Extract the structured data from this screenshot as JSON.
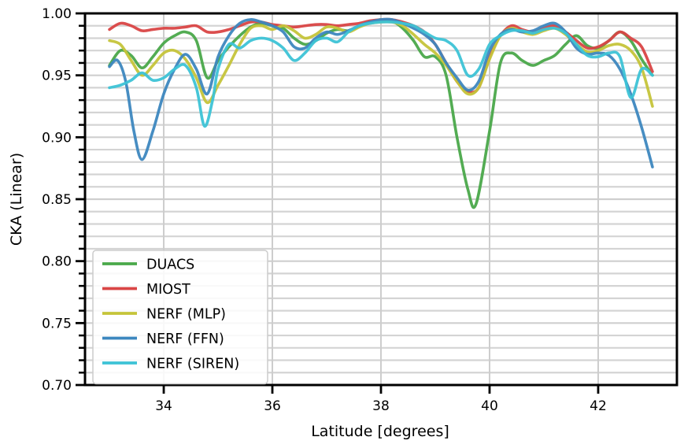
{
  "chart_data": {
    "type": "line",
    "title": "",
    "xlabel": "Latitude [degrees]",
    "ylabel": "CKA (Linear)",
    "xlim": [
      32.55,
      43.45
    ],
    "ylim": [
      0.7,
      1.0
    ],
    "x_ticks": [
      34,
      36,
      38,
      40,
      42
    ],
    "x_tick_labels": [
      "34",
      "36",
      "38",
      "40",
      "42"
    ],
    "y_ticks": [
      0.7,
      0.75,
      0.8,
      0.85,
      0.9,
      0.95,
      1.0
    ],
    "y_tick_labels": [
      "0.70",
      "0.75",
      "0.80",
      "0.85",
      "0.90",
      "0.95",
      "1.00"
    ],
    "grid": true,
    "legend_position": "lower-left",
    "series": [
      {
        "name": "DUACS",
        "color": "#4aa84a",
        "points": [
          [
            33.0,
            0.958
          ],
          [
            33.2,
            0.97
          ],
          [
            33.4,
            0.966
          ],
          [
            33.6,
            0.956
          ],
          [
            33.8,
            0.965
          ],
          [
            34.0,
            0.976
          ],
          [
            34.2,
            0.982
          ],
          [
            34.4,
            0.985
          ],
          [
            34.6,
            0.978
          ],
          [
            34.8,
            0.948
          ],
          [
            35.0,
            0.962
          ],
          [
            35.2,
            0.973
          ],
          [
            35.4,
            0.982
          ],
          [
            35.6,
            0.989
          ],
          [
            35.8,
            0.992
          ],
          [
            36.0,
            0.99
          ],
          [
            36.2,
            0.988
          ],
          [
            36.4,
            0.98
          ],
          [
            36.6,
            0.975
          ],
          [
            36.8,
            0.978
          ],
          [
            37.0,
            0.984
          ],
          [
            37.2,
            0.987
          ],
          [
            37.4,
            0.986
          ],
          [
            37.6,
            0.99
          ],
          [
            37.8,
            0.993
          ],
          [
            38.0,
            0.995
          ],
          [
            38.2,
            0.994
          ],
          [
            38.4,
            0.988
          ],
          [
            38.6,
            0.978
          ],
          [
            38.8,
            0.965
          ],
          [
            39.0,
            0.965
          ],
          [
            39.2,
            0.95
          ],
          [
            39.4,
            0.9
          ],
          [
            39.6,
            0.858
          ],
          [
            39.75,
            0.846
          ],
          [
            40.0,
            0.905
          ],
          [
            40.2,
            0.96
          ],
          [
            40.4,
            0.968
          ],
          [
            40.6,
            0.962
          ],
          [
            40.8,
            0.958
          ],
          [
            41.0,
            0.962
          ],
          [
            41.2,
            0.966
          ],
          [
            41.4,
            0.975
          ],
          [
            41.6,
            0.982
          ],
          [
            41.8,
            0.974
          ],
          [
            42.0,
            0.972
          ],
          [
            42.2,
            0.978
          ],
          [
            42.4,
            0.985
          ],
          [
            42.6,
            0.978
          ],
          [
            42.8,
            0.963
          ],
          [
            43.0,
            0.95
          ]
        ]
      },
      {
        "name": "MIOST",
        "color": "#d94545",
        "points": [
          [
            33.0,
            0.987
          ],
          [
            33.2,
            0.992
          ],
          [
            33.4,
            0.99
          ],
          [
            33.6,
            0.986
          ],
          [
            33.8,
            0.987
          ],
          [
            34.0,
            0.988
          ],
          [
            34.2,
            0.988
          ],
          [
            34.4,
            0.989
          ],
          [
            34.6,
            0.99
          ],
          [
            34.8,
            0.985
          ],
          [
            35.0,
            0.985
          ],
          [
            35.2,
            0.987
          ],
          [
            35.4,
            0.99
          ],
          [
            35.6,
            0.993
          ],
          [
            35.8,
            0.993
          ],
          [
            36.0,
            0.991
          ],
          [
            36.2,
            0.99
          ],
          [
            36.4,
            0.989
          ],
          [
            36.6,
            0.99
          ],
          [
            36.8,
            0.991
          ],
          [
            37.0,
            0.991
          ],
          [
            37.2,
            0.99
          ],
          [
            37.4,
            0.991
          ],
          [
            37.6,
            0.992
          ],
          [
            37.8,
            0.994
          ],
          [
            38.0,
            0.995
          ],
          [
            38.2,
            0.995
          ],
          [
            38.4,
            0.993
          ],
          [
            38.6,
            0.99
          ],
          [
            38.8,
            0.985
          ],
          [
            39.0,
            0.975
          ],
          [
            39.2,
            0.96
          ],
          [
            39.4,
            0.945
          ],
          [
            39.6,
            0.937
          ],
          [
            39.8,
            0.94
          ],
          [
            40.0,
            0.965
          ],
          [
            40.2,
            0.982
          ],
          [
            40.4,
            0.99
          ],
          [
            40.6,
            0.987
          ],
          [
            40.8,
            0.985
          ],
          [
            41.0,
            0.988
          ],
          [
            41.2,
            0.99
          ],
          [
            41.4,
            0.985
          ],
          [
            41.6,
            0.978
          ],
          [
            41.8,
            0.972
          ],
          [
            42.0,
            0.973
          ],
          [
            42.2,
            0.978
          ],
          [
            42.4,
            0.985
          ],
          [
            42.6,
            0.98
          ],
          [
            42.8,
            0.973
          ],
          [
            43.0,
            0.953
          ]
        ]
      },
      {
        "name": "NERF (MLP)",
        "color": "#c5c43a",
        "points": [
          [
            33.0,
            0.978
          ],
          [
            33.2,
            0.975
          ],
          [
            33.4,
            0.962
          ],
          [
            33.6,
            0.95
          ],
          [
            33.8,
            0.958
          ],
          [
            34.0,
            0.968
          ],
          [
            34.2,
            0.97
          ],
          [
            34.4,
            0.963
          ],
          [
            34.6,
            0.948
          ],
          [
            34.8,
            0.928
          ],
          [
            35.0,
            0.942
          ],
          [
            35.2,
            0.958
          ],
          [
            35.4,
            0.975
          ],
          [
            35.6,
            0.988
          ],
          [
            35.8,
            0.99
          ],
          [
            36.0,
            0.987
          ],
          [
            36.2,
            0.99
          ],
          [
            36.4,
            0.986
          ],
          [
            36.6,
            0.98
          ],
          [
            36.8,
            0.983
          ],
          [
            37.0,
            0.989
          ],
          [
            37.2,
            0.988
          ],
          [
            37.4,
            0.985
          ],
          [
            37.6,
            0.989
          ],
          [
            37.8,
            0.992
          ],
          [
            38.0,
            0.993
          ],
          [
            38.2,
            0.993
          ],
          [
            38.4,
            0.99
          ],
          [
            38.6,
            0.983
          ],
          [
            38.8,
            0.975
          ],
          [
            39.0,
            0.968
          ],
          [
            39.2,
            0.958
          ],
          [
            39.4,
            0.945
          ],
          [
            39.6,
            0.935
          ],
          [
            39.8,
            0.94
          ],
          [
            40.0,
            0.963
          ],
          [
            40.2,
            0.982
          ],
          [
            40.4,
            0.988
          ],
          [
            40.6,
            0.985
          ],
          [
            40.8,
            0.983
          ],
          [
            41.0,
            0.986
          ],
          [
            41.2,
            0.988
          ],
          [
            41.4,
            0.983
          ],
          [
            41.6,
            0.975
          ],
          [
            41.8,
            0.969
          ],
          [
            42.0,
            0.97
          ],
          [
            42.2,
            0.974
          ],
          [
            42.4,
            0.975
          ],
          [
            42.6,
            0.97
          ],
          [
            42.8,
            0.956
          ],
          [
            43.0,
            0.925
          ]
        ]
      },
      {
        "name": "NERF (FFN)",
        "color": "#3d87bf",
        "points": [
          [
            33.0,
            0.957
          ],
          [
            33.15,
            0.962
          ],
          [
            33.3,
            0.945
          ],
          [
            33.45,
            0.905
          ],
          [
            33.6,
            0.882
          ],
          [
            33.8,
            0.905
          ],
          [
            34.0,
            0.935
          ],
          [
            34.2,
            0.955
          ],
          [
            34.4,
            0.967
          ],
          [
            34.6,
            0.955
          ],
          [
            34.8,
            0.935
          ],
          [
            35.0,
            0.965
          ],
          [
            35.2,
            0.982
          ],
          [
            35.4,
            0.992
          ],
          [
            35.6,
            0.995
          ],
          [
            35.8,
            0.993
          ],
          [
            36.0,
            0.99
          ],
          [
            36.2,
            0.985
          ],
          [
            36.4,
            0.973
          ],
          [
            36.6,
            0.972
          ],
          [
            36.8,
            0.98
          ],
          [
            37.0,
            0.985
          ],
          [
            37.2,
            0.983
          ],
          [
            37.4,
            0.986
          ],
          [
            37.6,
            0.99
          ],
          [
            37.8,
            0.993
          ],
          [
            38.0,
            0.995
          ],
          [
            38.2,
            0.995
          ],
          [
            38.4,
            0.992
          ],
          [
            38.6,
            0.988
          ],
          [
            38.8,
            0.983
          ],
          [
            39.0,
            0.975
          ],
          [
            39.2,
            0.96
          ],
          [
            39.4,
            0.948
          ],
          [
            39.6,
            0.938
          ],
          [
            39.8,
            0.945
          ],
          [
            40.0,
            0.97
          ],
          [
            40.2,
            0.983
          ],
          [
            40.4,
            0.987
          ],
          [
            40.6,
            0.985
          ],
          [
            40.8,
            0.986
          ],
          [
            41.0,
            0.99
          ],
          [
            41.2,
            0.992
          ],
          [
            41.4,
            0.985
          ],
          [
            41.6,
            0.972
          ],
          [
            41.8,
            0.967
          ],
          [
            42.0,
            0.968
          ],
          [
            42.2,
            0.966
          ],
          [
            42.4,
            0.955
          ],
          [
            42.6,
            0.935
          ],
          [
            42.8,
            0.908
          ],
          [
            43.0,
            0.876
          ]
        ]
      },
      {
        "name": "NERF (SIREN)",
        "color": "#3dc3d6",
        "points": [
          [
            33.0,
            0.94
          ],
          [
            33.2,
            0.942
          ],
          [
            33.4,
            0.946
          ],
          [
            33.6,
            0.952
          ],
          [
            33.8,
            0.946
          ],
          [
            34.0,
            0.948
          ],
          [
            34.2,
            0.955
          ],
          [
            34.4,
            0.958
          ],
          [
            34.6,
            0.94
          ],
          [
            34.75,
            0.909
          ],
          [
            34.9,
            0.93
          ],
          [
            35.0,
            0.955
          ],
          [
            35.2,
            0.975
          ],
          [
            35.4,
            0.972
          ],
          [
            35.6,
            0.978
          ],
          [
            35.8,
            0.98
          ],
          [
            36.0,
            0.978
          ],
          [
            36.2,
            0.972
          ],
          [
            36.4,
            0.962
          ],
          [
            36.6,
            0.968
          ],
          [
            36.8,
            0.978
          ],
          [
            37.0,
            0.98
          ],
          [
            37.2,
            0.977
          ],
          [
            37.4,
            0.985
          ],
          [
            37.6,
            0.99
          ],
          [
            37.8,
            0.992
          ],
          [
            38.0,
            0.993
          ],
          [
            38.2,
            0.993
          ],
          [
            38.4,
            0.992
          ],
          [
            38.6,
            0.99
          ],
          [
            38.8,
            0.985
          ],
          [
            39.0,
            0.98
          ],
          [
            39.2,
            0.978
          ],
          [
            39.4,
            0.97
          ],
          [
            39.6,
            0.95
          ],
          [
            39.8,
            0.955
          ],
          [
            40.0,
            0.975
          ],
          [
            40.2,
            0.982
          ],
          [
            40.4,
            0.986
          ],
          [
            40.6,
            0.986
          ],
          [
            40.8,
            0.984
          ],
          [
            41.0,
            0.987
          ],
          [
            41.2,
            0.988
          ],
          [
            41.4,
            0.984
          ],
          [
            41.6,
            0.975
          ],
          [
            41.8,
            0.966
          ],
          [
            42.0,
            0.965
          ],
          [
            42.2,
            0.968
          ],
          [
            42.4,
            0.965
          ],
          [
            42.6,
            0.932
          ],
          [
            42.8,
            0.955
          ],
          [
            43.0,
            0.95
          ]
        ]
      }
    ]
  }
}
